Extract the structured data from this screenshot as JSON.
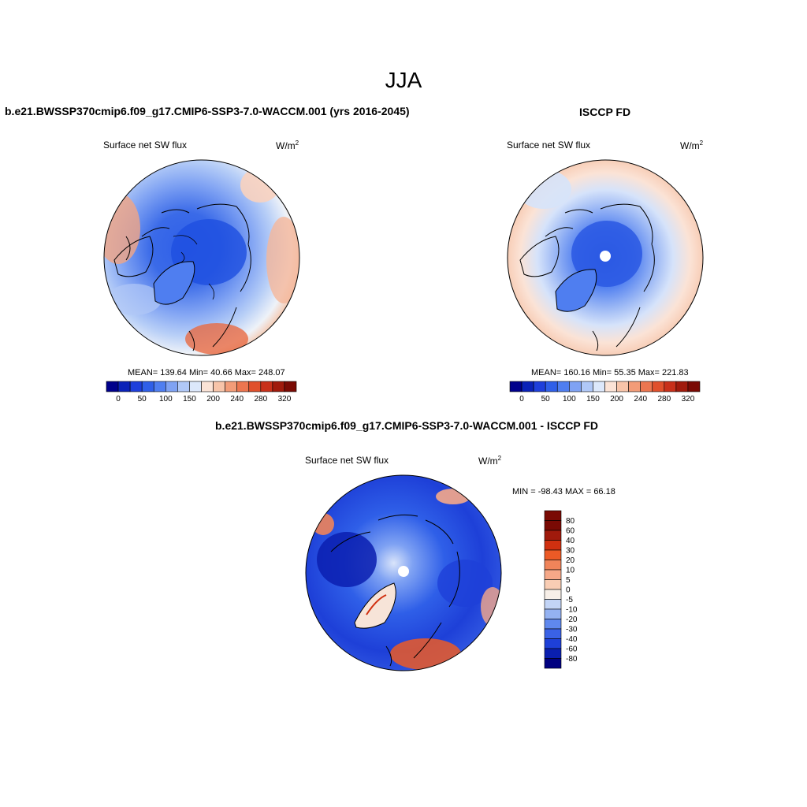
{
  "page": {
    "title": "JJA"
  },
  "panels": [
    {
      "title": "b.e21.BWSSP370cmip6.f09_g17.CMIP6-SSP3-7.0-WACCM.001 (yrs 2016-2045)",
      "variable": "Surface net SW flux",
      "units": "W/m",
      "units_sup": "2",
      "stats": "MEAN= 139.64  Min=  40.66  Max= 248.07",
      "colorbar_ticks": [
        "0",
        "50",
        "100",
        "150",
        "200",
        "240",
        "280",
        "320"
      ]
    },
    {
      "title": "ISCCP FD",
      "variable": "Surface net SW flux",
      "units": "W/m",
      "units_sup": "2",
      "stats": "MEAN= 160.16  Min=  55.35  Max= 221.83",
      "colorbar_ticks": [
        "0",
        "50",
        "100",
        "150",
        "200",
        "240",
        "280",
        "320"
      ]
    },
    {
      "title": "b.e21.BWSSP370cmip6.f09_g17.CMIP6-SSP3-7.0-WACCM.001 - ISCCP FD",
      "variable": "Surface net SW flux",
      "units": "W/m",
      "units_sup": "2",
      "stats": "MIN = -98.43 MAX =  66.18",
      "colorbar_ticks": [
        "80",
        "60",
        "40",
        "30",
        "20",
        "10",
        "5",
        "0",
        "-5",
        "-10",
        "-20",
        "-30",
        "-40",
        "-60",
        "-80"
      ]
    }
  ],
  "colors": {
    "abs_scale": [
      "#00008b",
      "#0a22b8",
      "#1e3fdb",
      "#2f5fe8",
      "#4f7ef0",
      "#7fa2f3",
      "#b0c8f7",
      "#dce8fb",
      "#fbe3d6",
      "#f7c4a9",
      "#f29c78",
      "#ec7650",
      "#e0502c",
      "#c8301a",
      "#a01a0c",
      "#7a0a04"
    ],
    "diff_scale": [
      "#7a0a04",
      "#a01a0c",
      "#d03010",
      "#ec5a26",
      "#f0845a",
      "#f6a888",
      "#f9cdb4",
      "#f7efe8",
      "#c2d4f6",
      "#94b2f2",
      "#5f88ee",
      "#3a62e6",
      "#1e40d8",
      "#0a1fb0",
      "#000080"
    ]
  }
}
